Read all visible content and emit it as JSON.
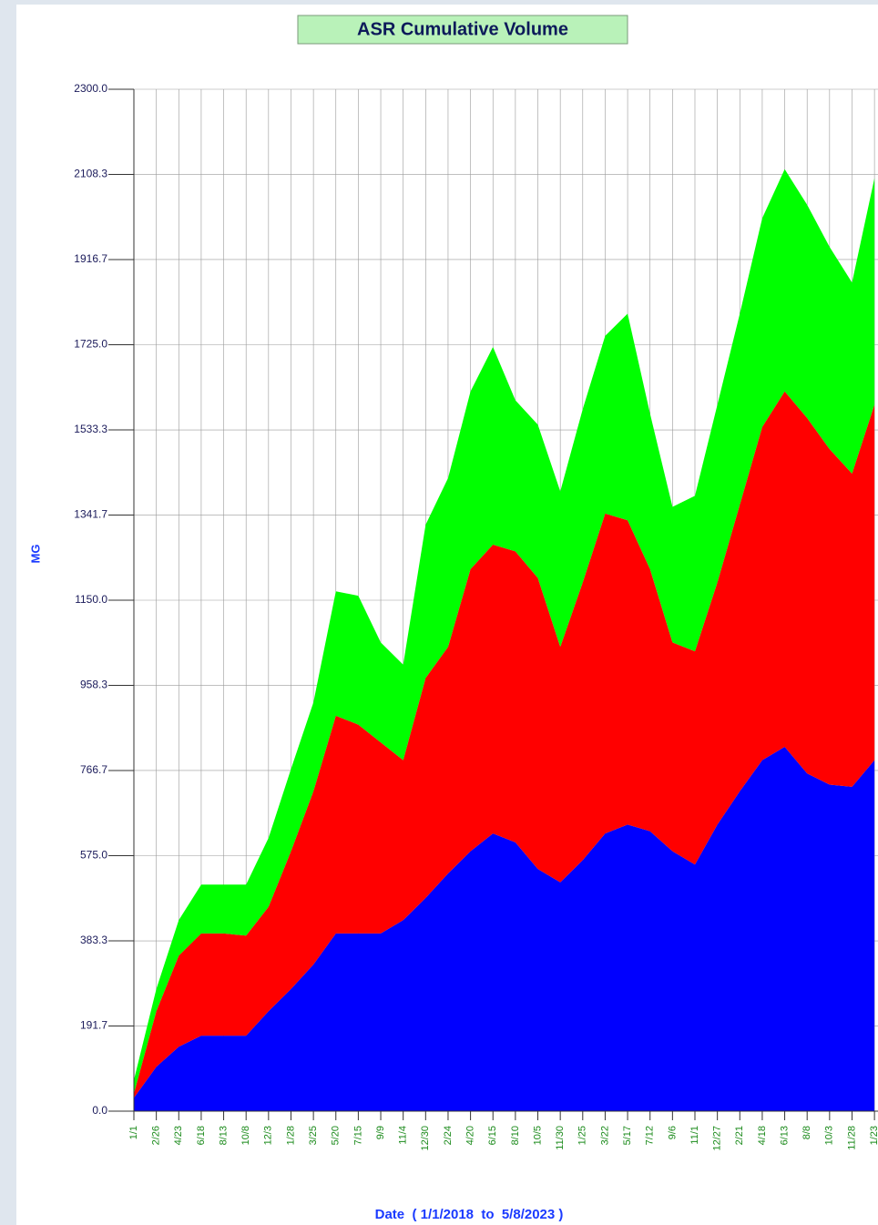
{
  "chart_data": {
    "type": "stacked_area",
    "title": "ASR Cumulative Volume",
    "y_label": "MG",
    "x_label": "Date  ( 1/1/2018  to  5/8/2023 )",
    "categories": [
      "1/1",
      "2/26",
      "4/23",
      "6/18",
      "8/13",
      "10/8",
      "12/3",
      "1/28",
      "3/25",
      "5/20",
      "7/15",
      "9/9",
      "11/4",
      "12/30",
      "2/24",
      "4/20",
      "6/15",
      "8/10",
      "10/5",
      "11/30",
      "1/25",
      "3/22",
      "5/17",
      "7/12",
      "9/6",
      "11/1",
      "12/27",
      "2/21",
      "4/18",
      "6/13",
      "8/8",
      "10/3",
      "11/28",
      "1/23"
    ],
    "series": [
      {
        "color": "#0000ff",
        "values": [
          30,
          100,
          145,
          170,
          170,
          170,
          225,
          275,
          330,
          400,
          400,
          400,
          430,
          480,
          535,
          585,
          625,
          605,
          545,
          515,
          565,
          625,
          645,
          630,
          585,
          555,
          645,
          720,
          790,
          820,
          760,
          735,
          730,
          790
        ]
      },
      {
        "color": "#ff0000",
        "values": [
          10,
          125,
          205,
          230,
          230,
          225,
          235,
          310,
          390,
          490,
          470,
          430,
          360,
          495,
          510,
          635,
          650,
          655,
          655,
          530,
          625,
          720,
          685,
          590,
          470,
          480,
          545,
          645,
          750,
          800,
          800,
          755,
          705,
          800
        ]
      },
      {
        "color": "#00ff00",
        "values": [
          30,
          50,
          80,
          110,
          110,
          115,
          155,
          185,
          200,
          280,
          290,
          225,
          215,
          345,
          380,
          400,
          445,
          340,
          345,
          350,
          390,
          400,
          465,
          350,
          305,
          350,
          400,
          430,
          470,
          500,
          480,
          455,
          430,
          510
        ]
      }
    ],
    "ylim": [
      0,
      2300
    ],
    "yticks": [
      {
        "value": 0,
        "label": "0.0"
      },
      191.7,
      383.3,
      {
        "value": 575,
        "label": "575.0"
      },
      766.7,
      958.3,
      {
        "value": 1150,
        "label": "1150.0"
      },
      1341.7,
      1533.3,
      {
        "value": 1725,
        "label": "1725.0"
      },
      1916.7,
      2108.3,
      {
        "value": 2300,
        "label": "2300.0"
      }
    ],
    "grid": true
  }
}
